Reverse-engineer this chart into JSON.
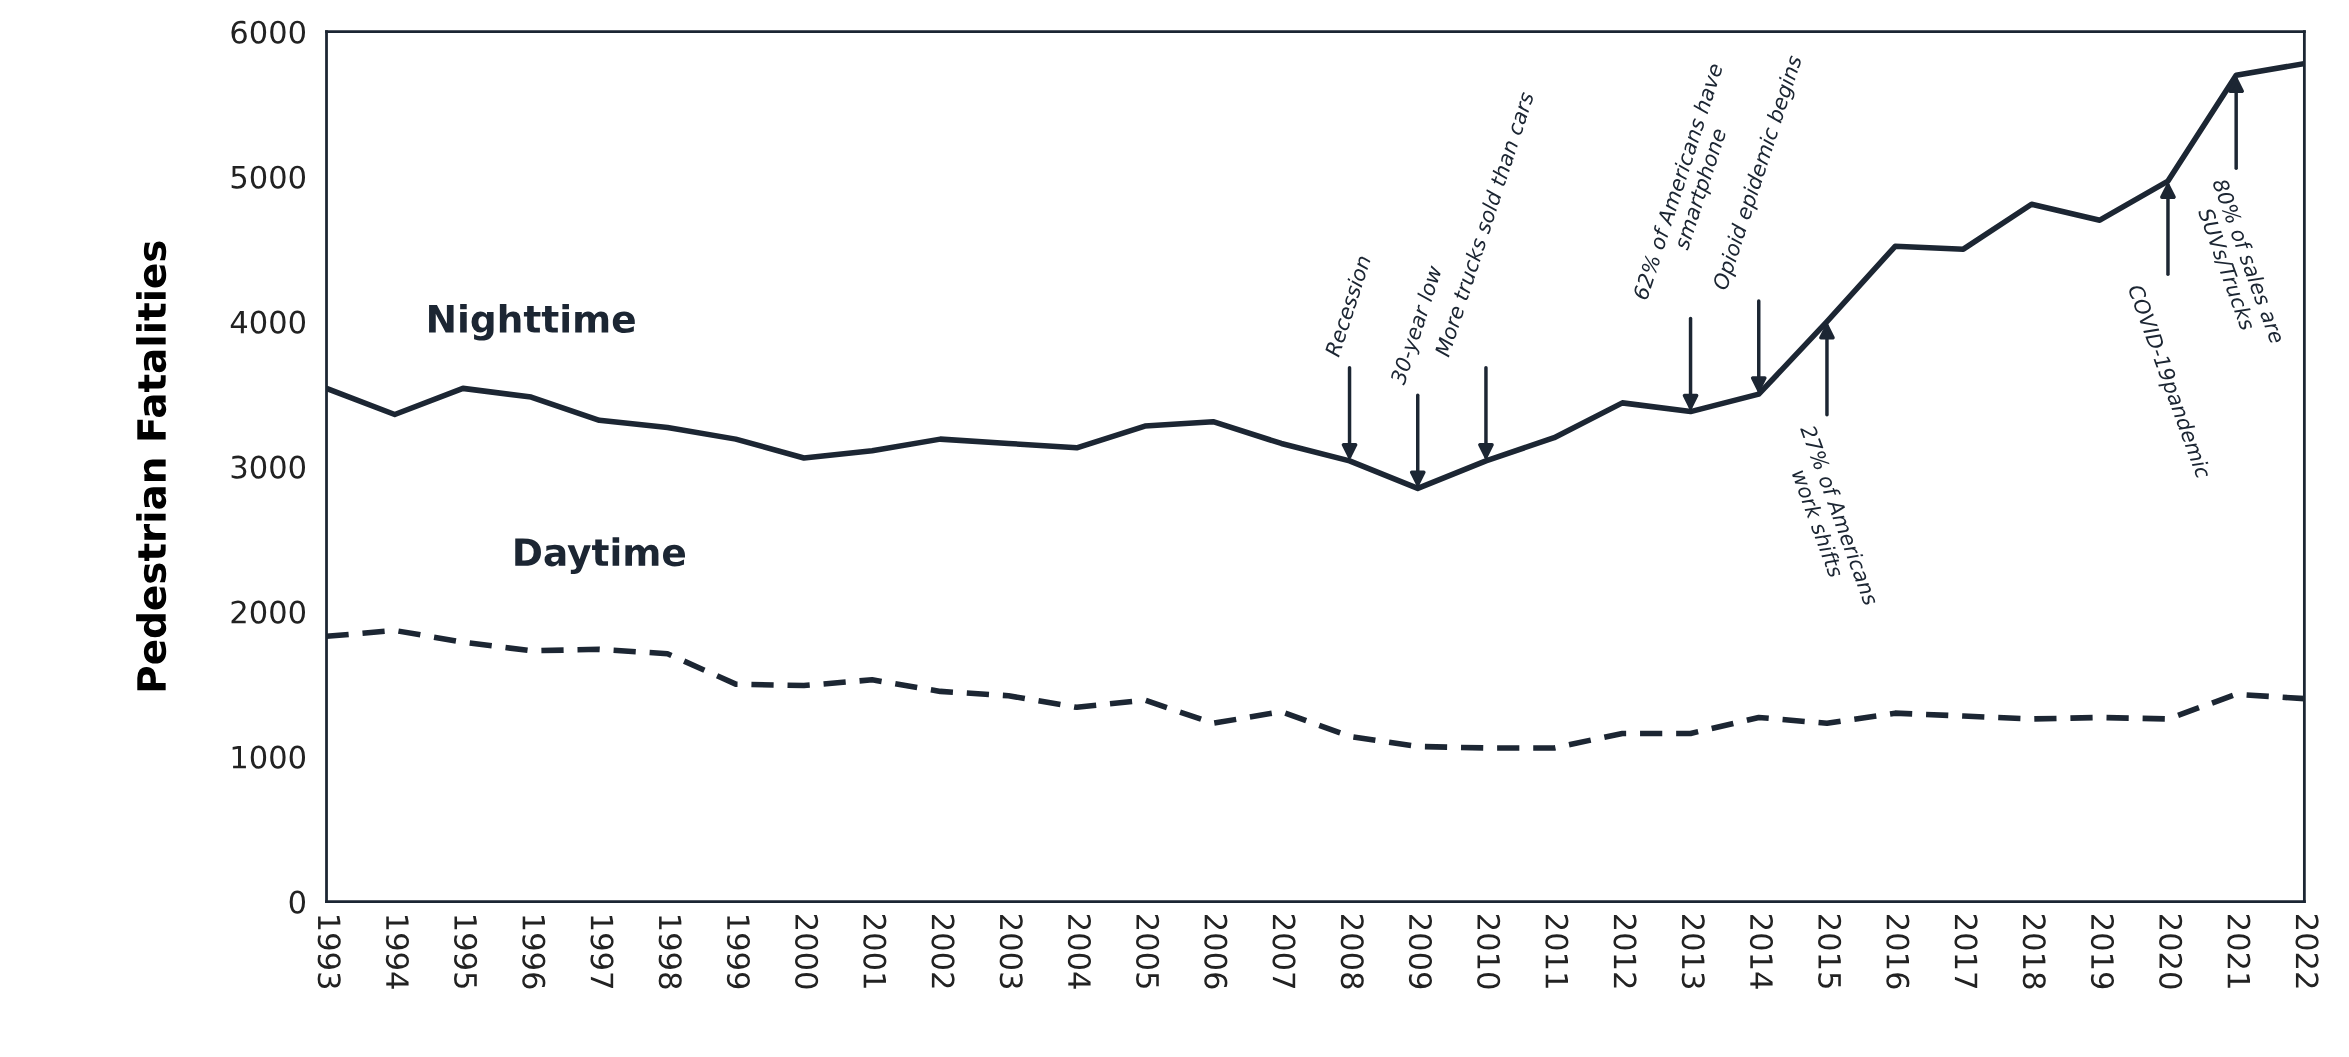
{
  "chart_data": {
    "type": "line",
    "ylabel": "Pedestrian Fatalities",
    "categories": [
      "1993",
      "1994",
      "1995",
      "1996",
      "1997",
      "1998",
      "1999",
      "2000",
      "2001",
      "2002",
      "2003",
      "2004",
      "2005",
      "2006",
      "2007",
      "2008",
      "2009",
      "2010",
      "2011",
      "2012",
      "2013",
      "2014",
      "2015",
      "2016",
      "2017",
      "2018",
      "2019",
      "2020",
      "2021",
      "2022"
    ],
    "series": [
      {
        "name": "Nighttime",
        "color": "#1c2633",
        "line_style": "solid",
        "values": [
          3540,
          3360,
          3540,
          3480,
          3320,
          3270,
          3190,
          3060,
          3110,
          3190,
          3160,
          3130,
          3280,
          3310,
          3160,
          3040,
          2850,
          3040,
          3200,
          3440,
          3380,
          3500,
          4000,
          4520,
          4500,
          4810,
          4700,
          4970,
          5700,
          5780
        ]
      },
      {
        "name": "Daytime",
        "color": "#1c2633",
        "line_style": "dashed",
        "values": [
          1830,
          1870,
          1790,
          1730,
          1740,
          1710,
          1500,
          1490,
          1530,
          1450,
          1420,
          1340,
          1390,
          1230,
          1310,
          1140,
          1070,
          1060,
          1060,
          1160,
          1160,
          1270,
          1230,
          1300,
          1280,
          1260,
          1270,
          1260,
          1430,
          1400
        ]
      }
    ],
    "ylim": [
      0,
      6000
    ],
    "yticks": [
      0,
      1000,
      2000,
      3000,
      4000,
      5000,
      6000
    ],
    "grid": false,
    "legend": false,
    "marker": "none",
    "annotations": [
      {
        "text": "Recession",
        "x": "2008",
        "y": 3040
      },
      {
        "text": "30-year low",
        "x": "2009",
        "y": 2850
      },
      {
        "text": "More trucks sold than cars",
        "x": "2010",
        "y": 3040
      },
      {
        "text": "62% of Americans have\nsmartphone",
        "x": "2013",
        "y": 3380
      },
      {
        "text": "Opioid epidemic begins",
        "x": "2014",
        "y": 3500
      },
      {
        "text": "27% of Americans\nwork shifts",
        "x": "2015",
        "y": 4000
      },
      {
        "text": "COVID-19pandemic",
        "x": "2020",
        "y": 4970
      },
      {
        "text": "80% of sales are\nSUVs/Trucks",
        "x": "2021",
        "y": 5700
      }
    ]
  }
}
